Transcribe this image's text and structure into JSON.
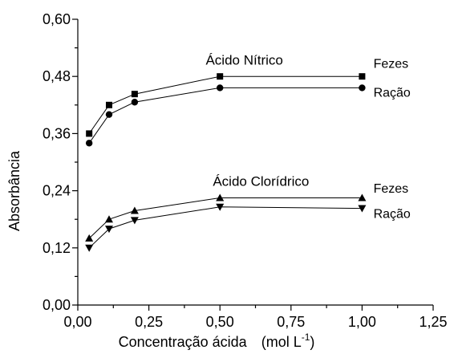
{
  "chart_data": {
    "type": "line",
    "title": "",
    "xlabel": "Concentração ácida",
    "xlabel_unit": "(mol L",
    "xlabel_unit_sup": "-1",
    "xlabel_unit_close": ")",
    "ylabel": "Absorbância",
    "xlim": [
      0,
      1.25
    ],
    "ylim": [
      0,
      0.6
    ],
    "grid": false,
    "x_ticks": [
      0,
      0.25,
      0.5,
      0.75,
      1.0,
      1.25
    ],
    "x_tick_labels": [
      "0,00",
      "0,25",
      "0,50",
      "0,75",
      "1,00",
      "1,25"
    ],
    "y_ticks": [
      0,
      0.12,
      0.24,
      0.36,
      0.48,
      0.6
    ],
    "y_tick_labels": [
      "0,00",
      "0,12",
      "0,24",
      "0,36",
      "0,48",
      "0,60"
    ],
    "x": [
      0.04,
      0.11,
      0.2,
      0.5,
      1.0
    ],
    "series": [
      {
        "name": "Fezes",
        "group": "Ácido Nítrico",
        "marker": "square",
        "values": [
          0.36,
          0.42,
          0.443,
          0.48,
          0.48
        ]
      },
      {
        "name": "Ração",
        "group": "Ácido Nítrico",
        "marker": "circle",
        "values": [
          0.34,
          0.4,
          0.426,
          0.456,
          0.456
        ]
      },
      {
        "name": "Fezes",
        "group": "Ácido Clorídrico",
        "marker": "triangle-up",
        "values": [
          0.14,
          0.18,
          0.198,
          0.225,
          0.225
        ]
      },
      {
        "name": "Ração",
        "group": "Ácido Clorídrico",
        "marker": "triangle-down",
        "values": [
          0.12,
          0.16,
          0.178,
          0.206,
          0.203
        ]
      }
    ],
    "annotations": [
      {
        "text": "Ácido Nítrico",
        "x": 0.45,
        "y": 0.505
      },
      {
        "text": "Fezes",
        "x": 1.04,
        "y": 0.498
      },
      {
        "text": "Ração",
        "x": 1.04,
        "y": 0.437
      },
      {
        "text": "Ácido Clorídrico",
        "x": 0.475,
        "y": 0.25
      },
      {
        "text": "Fezes",
        "x": 1.04,
        "y": 0.236
      },
      {
        "text": "Ração",
        "x": 1.04,
        "y": 0.183
      }
    ]
  }
}
